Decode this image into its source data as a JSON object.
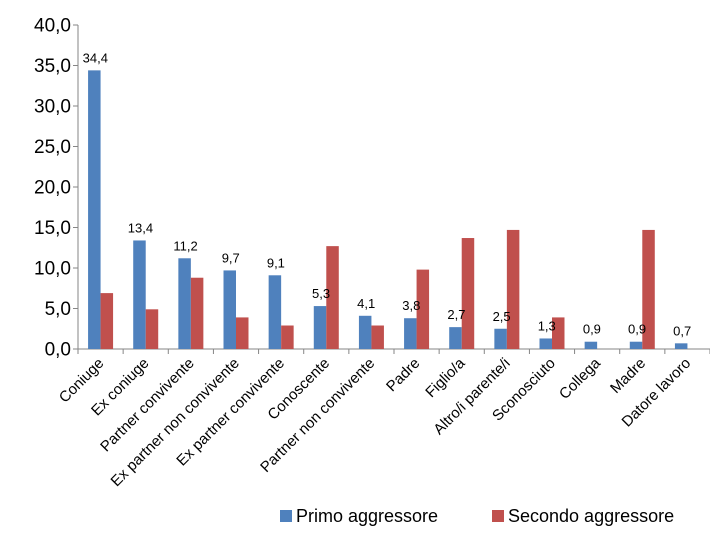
{
  "chart_data": {
    "type": "bar",
    "title": "",
    "xlabel": "",
    "ylabel": "",
    "ylim": [
      0,
      40
    ],
    "ytick_step": 5,
    "ytick_labels": [
      "0,0",
      "5,0",
      "10,0",
      "15,0",
      "20,0",
      "25,0",
      "30,0",
      "35,0",
      "40,0"
    ],
    "grid": false,
    "legend_position": "bottom-right",
    "categories": [
      "Coniuge",
      "Ex coniuge",
      "Partner convivente",
      "Ex partner non convivente",
      "Ex partner convivente",
      "Conoscente",
      "Partner non convivente",
      "Padre",
      "Figlio/a",
      "Altro/i parente/i",
      "Sconosciuto",
      "Collega",
      "Madre",
      "Datore lavoro"
    ],
    "series": [
      {
        "name": "Primo aggressore",
        "color": "#4F81BD",
        "values": [
          34.4,
          13.4,
          11.2,
          9.7,
          9.1,
          5.3,
          4.1,
          3.8,
          2.7,
          2.5,
          1.3,
          0.9,
          0.9,
          0.7
        ],
        "labels": [
          "34,4",
          "13,4",
          "11,2",
          "9,7",
          "9,1",
          "5,3",
          "4,1",
          "3,8",
          "2,7",
          "2,5",
          "1,3",
          "0,9",
          "0,9",
          "0,7"
        ]
      },
      {
        "name": "Secondo aggressore",
        "color": "#C0504D",
        "values": [
          6.9,
          4.9,
          8.8,
          3.9,
          2.9,
          12.7,
          2.9,
          9.8,
          13.7,
          14.7,
          3.9,
          0,
          14.7,
          0
        ]
      }
    ]
  }
}
